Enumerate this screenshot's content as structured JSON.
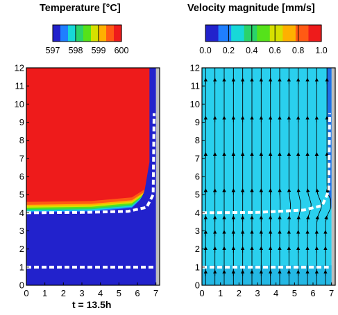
{
  "chart_data": [
    {
      "type": "heatmap",
      "title": "Temperature [°C]",
      "colorbar": {
        "ticks": [
          "597",
          "598",
          "599",
          "600"
        ],
        "colors": [
          "#2222cc",
          "#1f7fff",
          "#17d8d8",
          "#2ad36a",
          "#55e21a",
          "#d6e000",
          "#ffb000",
          "#ff5a14",
          "#ee1b1b"
        ]
      },
      "x_ticks": [
        0,
        1,
        2,
        3,
        4,
        5,
        6,
        7
      ],
      "y_ticks": [
        0,
        1,
        2,
        3,
        4,
        5,
        6,
        7,
        8,
        9,
        10,
        11,
        12
      ],
      "xlim": [
        0,
        7.2
      ],
      "ylim": [
        0,
        12
      ],
      "regions": [
        {
          "value": 600,
          "y_from": 4.6,
          "y_to": 12,
          "x_to": 7.0
        },
        {
          "value": 597,
          "y_from": 0,
          "y_to": 4.0,
          "x_to": 7.0
        }
      ],
      "dashed_lines": [
        {
          "y": 1.0
        },
        {
          "profile": [
            [
              0,
              4.0
            ],
            [
              3,
              4.02
            ],
            [
              5.5,
              4.08
            ],
            [
              6.5,
              4.3
            ],
            [
              6.85,
              5.0
            ],
            [
              6.9,
              9.5
            ]
          ]
        }
      ],
      "time_label": "t = 13.5h"
    },
    {
      "type": "heatmap",
      "title": "Velocity magnitude [mm/s]",
      "colorbar": {
        "ticks": [
          "0.0",
          "0.2",
          "0.4",
          "0.6",
          "0.8",
          "1.0"
        ],
        "colors": [
          "#2222cc",
          "#1f7fff",
          "#17d8d8",
          "#2ad36a",
          "#55e21a",
          "#d6e000",
          "#ffb000",
          "#ff5a14",
          "#ee1b1b"
        ]
      },
      "x_ticks": [
        0,
        1,
        2,
        3,
        4,
        5,
        6,
        7
      ],
      "y_ticks": [
        0,
        1,
        2,
        3,
        4,
        5,
        6,
        7,
        8,
        9,
        10,
        11,
        12
      ],
      "xlim": [
        0,
        7.2
      ],
      "ylim": [
        0,
        12
      ],
      "field_value_approx": 0.15,
      "streamline_x": [
        0.2,
        0.7,
        1.2,
        1.7,
        2.2,
        2.7,
        3.2,
        3.7,
        4.2,
        4.7,
        5.2,
        5.7,
        6.2,
        6.65
      ],
      "arrow_y": [
        0.5,
        1.8,
        2.7,
        3.5,
        5.0,
        7.0,
        9.0,
        11.1
      ],
      "dashed_lines": [
        {
          "y": 1.0
        },
        {
          "profile": [
            [
              0,
              4.0
            ],
            [
              3,
              4.02
            ],
            [
              5.5,
              4.15
            ],
            [
              6.5,
              4.4
            ],
            [
              6.85,
              5.2
            ],
            [
              6.9,
              9.5
            ]
          ]
        }
      ]
    }
  ]
}
